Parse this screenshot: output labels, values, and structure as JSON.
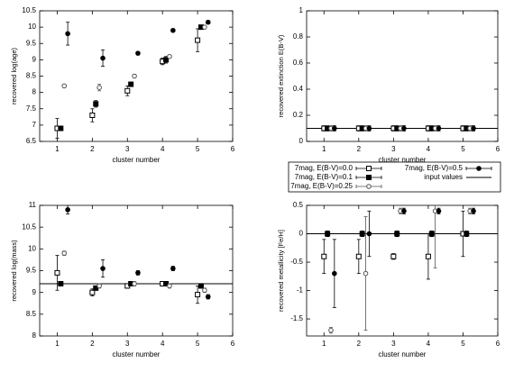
{
  "chart_data": [
    {
      "type": "scatter",
      "ylabel": "recovered log(age)",
      "xlabel": "cluster number",
      "xlim": [
        0.5,
        6
      ],
      "xticks": [
        1,
        2,
        3,
        4,
        5,
        6
      ],
      "ylim": [
        6.5,
        10.5
      ],
      "yticks": [
        6.5,
        7,
        7.5,
        8,
        8.5,
        9,
        9.5,
        10,
        10.5
      ],
      "series": [
        {
          "name": "7mag, E(B-V)=0.0",
          "marker": "open-square",
          "color": "#000000",
          "x": [
            1,
            2,
            3,
            4,
            5
          ],
          "values": [
            6.9,
            7.3,
            8.05,
            8.95,
            9.6
          ],
          "errors": [
            0.3,
            0.2,
            0.15,
            0.1,
            0.35
          ]
        },
        {
          "name": "7mag, E(B-V)=0.1",
          "marker": "filled-square",
          "color": "#000000",
          "x": [
            1.1,
            2.1,
            3.1,
            4.1,
            5.1
          ],
          "values": [
            6.9,
            7.65,
            8.25,
            9.0,
            10.0
          ],
          "errors": [
            0.05,
            0.1,
            0.05,
            0.1,
            0.05
          ]
        },
        {
          "name": "7mag, E(B-V)=0.25",
          "marker": "open-circle",
          "color": "#555555",
          "x": [
            1.2,
            2.2,
            3.2,
            4.2,
            5.2
          ],
          "values": [
            8.2,
            8.15,
            8.5,
            9.1,
            10.0
          ],
          "errors": [
            0.05,
            0.1,
            0.05,
            0.05,
            0.05
          ]
        },
        {
          "name": "7mag, E(B-V)=0.5",
          "marker": "filled-circle",
          "color": "#000000",
          "x": [
            1.3,
            2.3,
            3.3,
            4.3,
            5.3
          ],
          "values": [
            9.8,
            9.05,
            9.2,
            9.9,
            10.15
          ],
          "errors": [
            0.35,
            0.25,
            0.05,
            0.05,
            0.05
          ]
        }
      ]
    },
    {
      "type": "scatter",
      "ylabel": "recovered extinction E(B-V)",
      "xlabel": "cluster number",
      "xlim": [
        0.5,
        6
      ],
      "xticks": [
        1,
        2,
        3,
        4,
        5,
        6
      ],
      "ylim": [
        0,
        1
      ],
      "yticks": [
        0,
        0.2,
        0.4,
        0.6,
        0.8,
        1
      ],
      "reference_line": {
        "value": 0.1,
        "label": "input values"
      },
      "series": [
        {
          "marker": "open-square",
          "color": "#000000",
          "x": [
            1,
            2,
            3,
            4,
            5
          ],
          "values": [
            0.1,
            0.1,
            0.1,
            0.1,
            0.1
          ],
          "errors": [
            0.02,
            0.02,
            0.02,
            0.02,
            0.02
          ]
        },
        {
          "marker": "filled-square",
          "color": "#000000",
          "x": [
            1.1,
            2.1,
            3.1,
            4.1,
            5.1
          ],
          "values": [
            0.1,
            0.1,
            0.1,
            0.1,
            0.1
          ],
          "errors": [
            0.02,
            0.02,
            0.02,
            0.02,
            0.02
          ]
        },
        {
          "marker": "open-circle",
          "color": "#555555",
          "x": [
            1.2,
            2.2,
            3.2,
            4.2,
            5.2
          ],
          "values": [
            0.1,
            0.1,
            0.1,
            0.1,
            0.1
          ],
          "errors": [
            0.02,
            0.02,
            0.02,
            0.02,
            0.02
          ]
        },
        {
          "marker": "filled-circle",
          "color": "#000000",
          "x": [
            1.3,
            2.3,
            3.3,
            4.3,
            5.3
          ],
          "values": [
            0.1,
            0.1,
            0.1,
            0.1,
            0.1
          ],
          "errors": [
            0.02,
            0.02,
            0.02,
            0.02,
            0.02
          ]
        }
      ]
    },
    {
      "type": "scatter",
      "ylabel": "recovered log(mass)",
      "xlabel": "cluster number",
      "xlim": [
        0.5,
        6
      ],
      "xticks": [
        1,
        2,
        3,
        4,
        5,
        6
      ],
      "ylim": [
        8,
        11
      ],
      "yticks": [
        8,
        8.5,
        9,
        9.5,
        10,
        10.5,
        11
      ],
      "reference_line": {
        "value": 9.2
      },
      "series": [
        {
          "marker": "open-square",
          "color": "#000000",
          "x": [
            1,
            2,
            3,
            4,
            5
          ],
          "values": [
            9.45,
            9.0,
            9.15,
            9.2,
            8.95
          ],
          "errors": [
            0.4,
            0.08,
            0.05,
            0.05,
            0.2
          ]
        },
        {
          "marker": "filled-square",
          "color": "#000000",
          "x": [
            1.1,
            2.1,
            3.1,
            4.1,
            5.1
          ],
          "values": [
            9.2,
            9.1,
            9.2,
            9.2,
            9.15
          ],
          "errors": [
            0.05,
            0.05,
            0.05,
            0.05,
            0.05
          ]
        },
        {
          "marker": "open-circle",
          "color": "#555555",
          "x": [
            1.2,
            2.2,
            3.2,
            4.2,
            5.2
          ],
          "values": [
            9.9,
            9.15,
            9.2,
            9.15,
            9.05
          ],
          "errors": [
            0.05,
            0.05,
            0.05,
            0.05,
            0.05
          ]
        },
        {
          "marker": "filled-circle",
          "color": "#000000",
          "x": [
            1.3,
            2.3,
            3.3,
            4.3,
            5.3
          ],
          "values": [
            10.9,
            9.55,
            9.45,
            9.55,
            8.9
          ],
          "errors": [
            0.1,
            0.2,
            0.05,
            0.05,
            0.05
          ]
        }
      ]
    },
    {
      "type": "scatter",
      "ylabel": "recovered metallicity [Fe/H]",
      "xlabel": "cluster number",
      "xlim": [
        0.5,
        6
      ],
      "xticks": [
        1,
        2,
        3,
        4,
        5,
        6
      ],
      "ylim": [
        -1.8,
        0.5
      ],
      "yticks": [
        -1.5,
        -1,
        -0.5,
        0,
        0.5
      ],
      "reference_line": {
        "value": 0
      },
      "series": [
        {
          "marker": "open-square",
          "color": "#000000",
          "x": [
            1,
            2,
            3,
            4,
            5
          ],
          "values": [
            -0.4,
            -0.4,
            -0.4,
            -0.4,
            0
          ],
          "errors": [
            0.3,
            0.3,
            0.05,
            0.4,
            0.4
          ]
        },
        {
          "marker": "filled-square",
          "color": "#000000",
          "x": [
            1.1,
            2.1,
            3.1,
            4.1,
            5.1
          ],
          "values": [
            0,
            0,
            0,
            0,
            0
          ],
          "errors": [
            0.05,
            0.05,
            0.05,
            0.05,
            0.05
          ]
        },
        {
          "marker": "open-circle",
          "color": "#555555",
          "x": [
            1.2,
            2.2,
            3.2,
            4.2,
            5.2
          ],
          "values": [
            -1.7,
            -0.7,
            0.4,
            0.4,
            0.4
          ],
          "errors": [
            0.05,
            1.0,
            0.05,
            1.0,
            0.05
          ]
        },
        {
          "marker": "filled-circle",
          "color": "#000000",
          "x": [
            1.3,
            2.3,
            3.3,
            4.3,
            5.3
          ],
          "values": [
            -0.7,
            0,
            0.4,
            0.4,
            0.4
          ],
          "errors": [
            0.6,
            0.4,
            0.05,
            0.05,
            0.05
          ]
        }
      ]
    }
  ]
}
